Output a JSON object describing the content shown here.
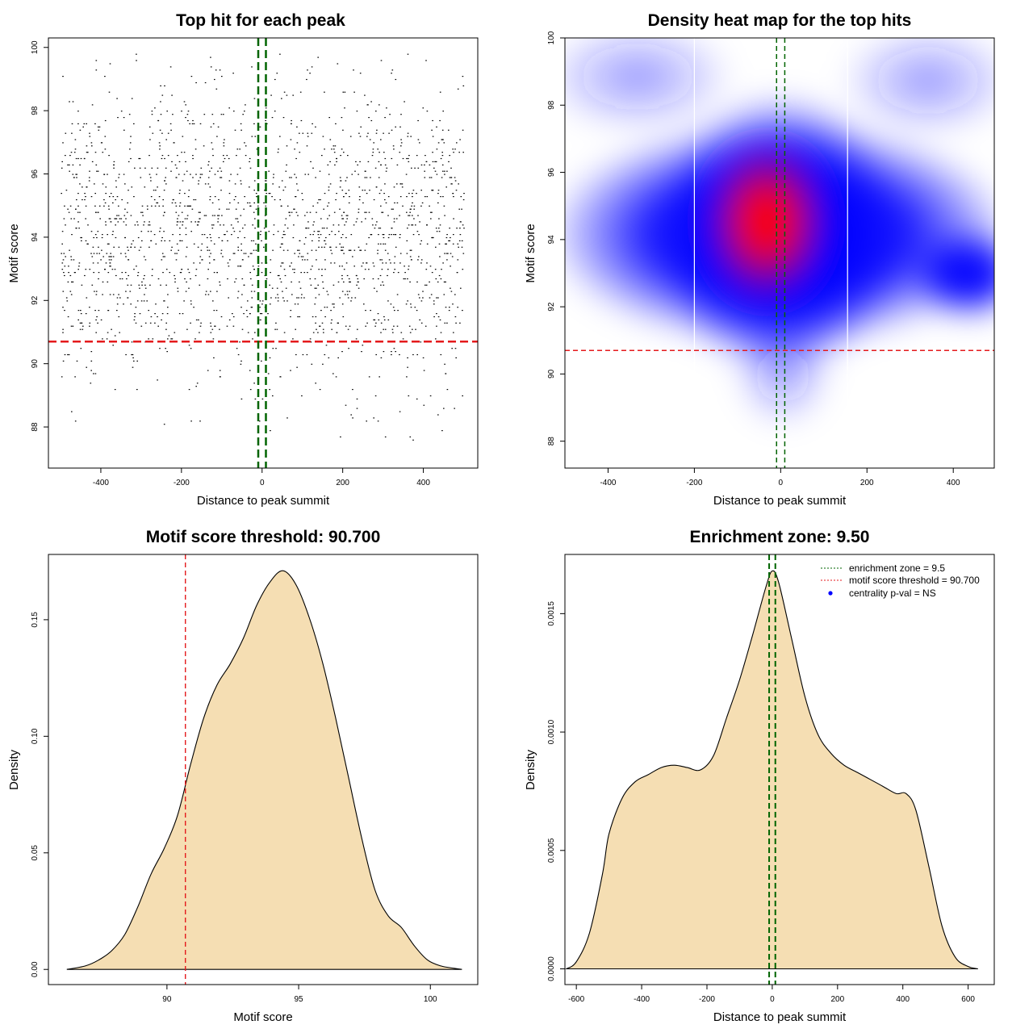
{
  "chart_data": [
    {
      "id": "scatter",
      "type": "scatter",
      "title": "Top hit for each peak",
      "xlabel": "Distance to peak summit",
      "ylabel": "Motif score",
      "xlim": [
        -530,
        535
      ],
      "ylim": [
        86.7,
        100.3
      ],
      "xticks": [
        -400,
        -200,
        0,
        200,
        400
      ],
      "yticks": [
        88,
        90,
        92,
        94,
        96,
        98,
        100
      ],
      "grid": false,
      "n_points_approx": 2000,
      "point_distribution": {
        "x_range": [
          -500,
          500
        ],
        "y_center": 94.0,
        "y_spread": 2.4,
        "y_range": [
          87.4,
          99.9
        ]
      },
      "hlines": [
        {
          "y": 90.7,
          "color": "#e41a1c",
          "style": "dashed"
        }
      ],
      "vlines": [
        {
          "x": -9.5,
          "color": "#006400",
          "style": "dashed"
        },
        {
          "x": 9.5,
          "color": "#006400",
          "style": "dashed"
        }
      ]
    },
    {
      "id": "heatmap",
      "type": "heatmap",
      "title": "Density heat map for the top hits",
      "xlabel": "Distance to peak summit",
      "ylabel": "Motif score",
      "xlim": [
        -500,
        495
      ],
      "ylim": [
        87.2,
        100.0
      ],
      "xticks": [
        -400,
        -200,
        0,
        200,
        400
      ],
      "yticks": [
        88,
        90,
        92,
        94,
        96,
        98,
        100
      ],
      "colors": {
        "low": "#ffffff",
        "mid": "#0000ff",
        "high": "#ff0000"
      },
      "peak": {
        "x": -20,
        "y": 94.6
      },
      "white_vlines": [
        -200,
        155
      ],
      "hlines": [
        {
          "y": 90.7,
          "color": "#e41a1c",
          "style": "dashed"
        }
      ],
      "vlines": [
        {
          "x": -9.5,
          "color": "#006400",
          "style": "dashed"
        },
        {
          "x": 9.5,
          "color": "#006400",
          "style": "dashed"
        }
      ]
    },
    {
      "id": "scoredens",
      "type": "area",
      "title": "Motif score threshold: 90.700",
      "xlabel": "Motif score",
      "ylabel": "Density",
      "xlim": [
        85.5,
        101.8
      ],
      "ylim": [
        -0.0065,
        0.178
      ],
      "xticks": [
        90,
        95,
        100
      ],
      "yticks": [
        0.0,
        0.05,
        0.1,
        0.15
      ],
      "ytick_labels": [
        "0.00",
        "0.05",
        "0.10",
        "0.15"
      ],
      "fill": "#f5deb3",
      "x": [
        86.2,
        86.9,
        87.4,
        87.9,
        88.4,
        88.9,
        89.4,
        89.9,
        90.4,
        90.9,
        91.4,
        91.9,
        92.4,
        92.9,
        93.4,
        93.9,
        94.4,
        94.9,
        95.4,
        95.9,
        96.4,
        96.9,
        97.4,
        97.9,
        98.4,
        98.9,
        99.4,
        99.9,
        100.4,
        100.9,
        101.2
      ],
      "y": [
        0.0,
        0.0015,
        0.004,
        0.008,
        0.015,
        0.027,
        0.041,
        0.052,
        0.066,
        0.088,
        0.108,
        0.122,
        0.131,
        0.142,
        0.156,
        0.166,
        0.171,
        0.165,
        0.151,
        0.132,
        0.108,
        0.082,
        0.056,
        0.034,
        0.023,
        0.018,
        0.01,
        0.004,
        0.0015,
        0.0005,
        0.0
      ],
      "vlines": [
        {
          "x": 90.7,
          "color": "#e41a1c",
          "style": "dashed"
        }
      ]
    },
    {
      "id": "distdens",
      "type": "area",
      "title": "Enrichment zone: 9.50",
      "xlabel": "Distance to peak summit",
      "ylabel": "Density",
      "xlim": [
        -635,
        680
      ],
      "ylim": [
        -6.64e-05,
        0.00175
      ],
      "xticks": [
        -600,
        -400,
        -200,
        0,
        200,
        400,
        600
      ],
      "yticks": [
        0.0,
        0.0005,
        0.001,
        0.0015
      ],
      "ytick_labels": [
        "0.0000",
        "0.0005",
        "0.0010",
        "0.0015"
      ],
      "fill": "#f5deb3",
      "x": [
        -630,
        -600,
        -560,
        -520,
        -500,
        -460,
        -420,
        -380,
        -340,
        -300,
        -260,
        -220,
        -180,
        -140,
        -100,
        -60,
        -20,
        0,
        20,
        60,
        100,
        140,
        180,
        220,
        260,
        300,
        340,
        380,
        410,
        440,
        480,
        520,
        560,
        600,
        630
      ],
      "y": [
        0.0,
        3e-05,
        0.00015,
        0.0004,
        0.00057,
        0.00072,
        0.00079,
        0.00082,
        0.00085,
        0.00086,
        0.00085,
        0.00084,
        0.0009,
        0.00106,
        0.00122,
        0.00141,
        0.00161,
        0.00168,
        0.00163,
        0.00139,
        0.00115,
        0.00099,
        0.00091,
        0.00086,
        0.00083,
        0.0008,
        0.00077,
        0.00074,
        0.00074,
        0.00067,
        0.00043,
        0.00018,
        5e-05,
        1e-05,
        0.0
      ],
      "vlines": [
        {
          "x": -9.5,
          "color": "#006400",
          "style": "dashed"
        },
        {
          "x": 9.5,
          "color": "#006400",
          "style": "dashed"
        }
      ],
      "legend": {
        "placement": "top-right",
        "entries": [
          {
            "label": "enrichment zone = 9.5",
            "color": "#006400",
            "symbol": "dotted-line"
          },
          {
            "label": "motif score threshold = 90.700",
            "color": "#e41a1c",
            "symbol": "dotted-line"
          },
          {
            "label": "centrality p-val = NS",
            "color": "#0000ff",
            "symbol": "dot"
          }
        ]
      }
    }
  ]
}
